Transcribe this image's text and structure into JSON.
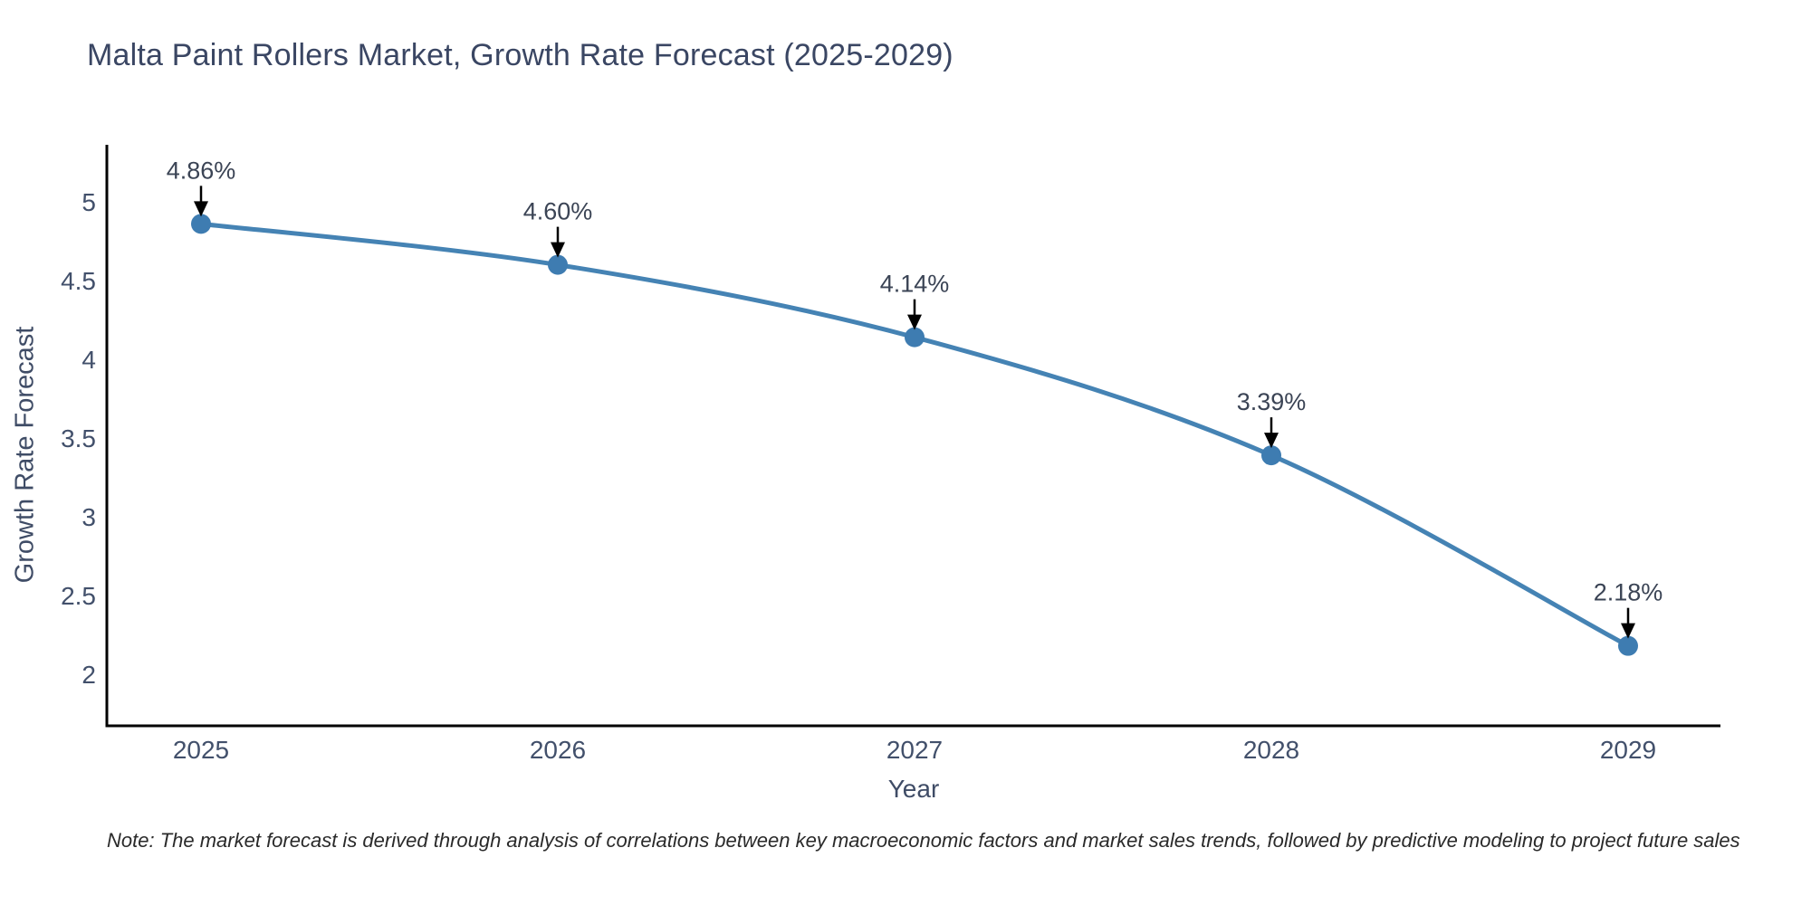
{
  "chart_data": {
    "type": "line",
    "title": "Malta Paint Rollers Market, Growth Rate Forecast (2025-2029)",
    "xlabel": "Year",
    "ylabel": "Growth Rate Forecast",
    "x": [
      2025,
      2026,
      2027,
      2028,
      2029
    ],
    "series": [
      {
        "name": "Growth Rate Forecast",
        "values": [
          4.86,
          4.6,
          4.14,
          3.39,
          2.18
        ],
        "point_labels": [
          "4.86%",
          "4.60%",
          "4.14%",
          "3.39%",
          "2.18%"
        ]
      }
    ],
    "xtick_labels": [
      "2025",
      "2026",
      "2027",
      "2028",
      "2029"
    ],
    "ytick_values": [
      2,
      2.5,
      3,
      3.5,
      4,
      4.5,
      5
    ],
    "ytick_labels": [
      "2",
      "2.5",
      "3",
      "3.5",
      "4",
      "4.5",
      "5"
    ],
    "ylim": [
      1.67,
      5.36
    ],
    "xlim": [
      2024.74,
      2029.26
    ],
    "grid": false,
    "legend": "none",
    "annotations_have_arrows": true,
    "colors": {
      "line": "#4583b4",
      "marker": "#3e7cb1",
      "arrow": "#000000",
      "spine": "#000000",
      "title_text": "#3a4663",
      "tick_text": "#42506b"
    }
  },
  "note": {
    "text": "Note: The market forecast is derived through analysis of correlations between key macroeconomic factors and market sales trends, followed by predictive modeling to project future sales"
  }
}
